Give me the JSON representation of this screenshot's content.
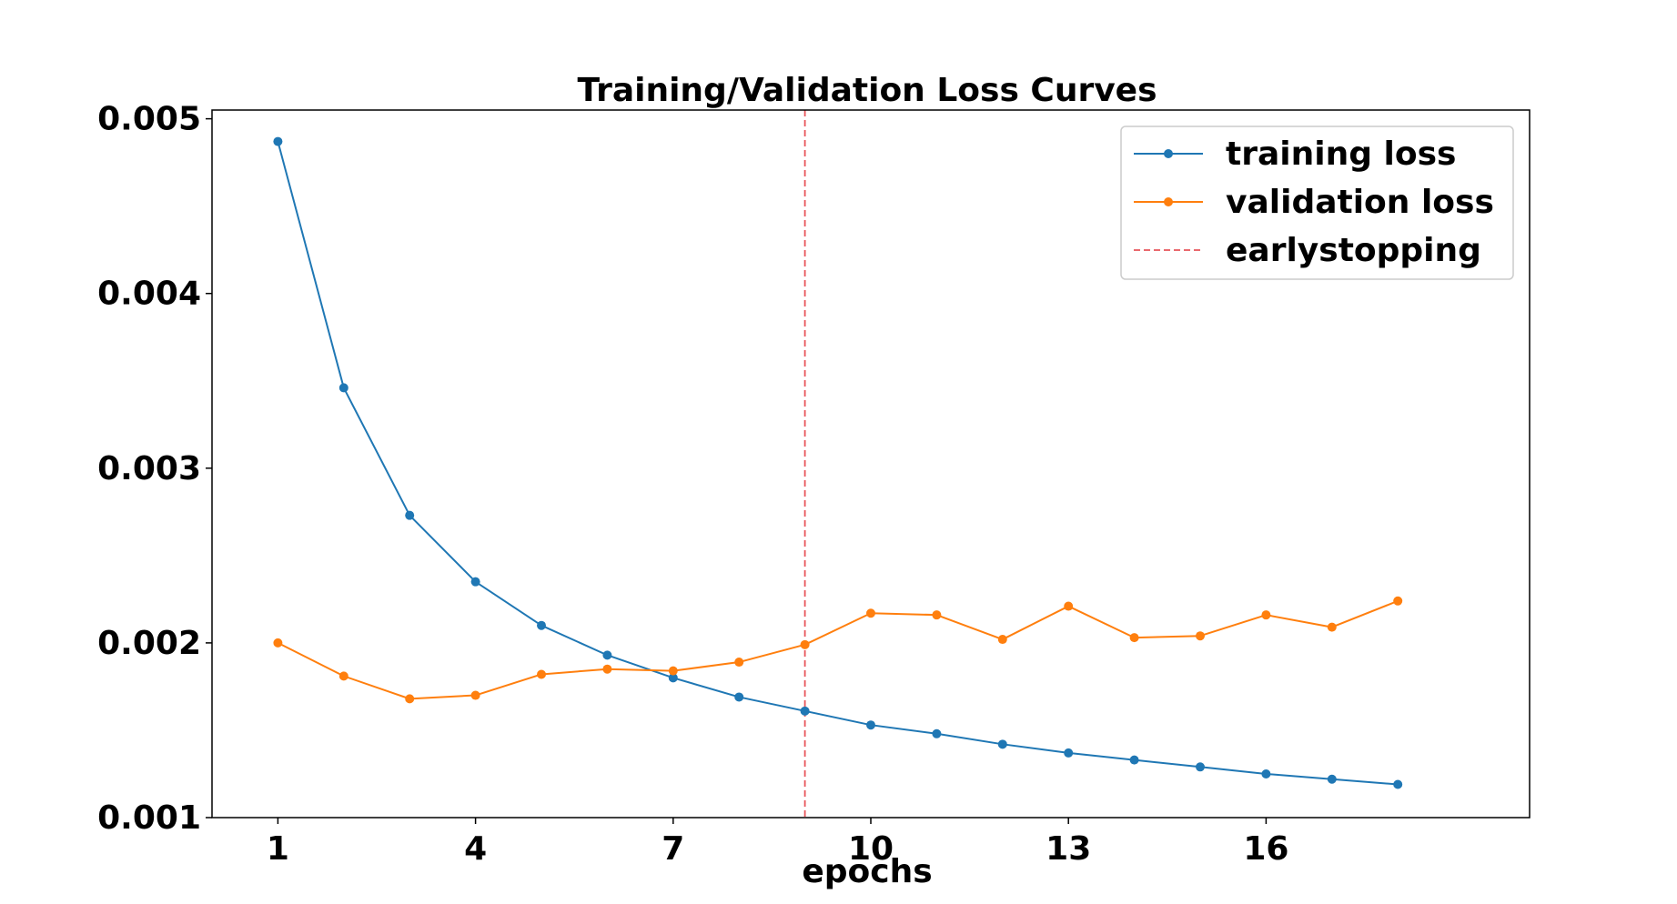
{
  "chart_data": {
    "type": "line",
    "title": "Training/Validation Loss Curves",
    "xlabel": "epochs",
    "ylabel": "",
    "x": [
      1,
      2,
      3,
      4,
      5,
      6,
      7,
      8,
      9,
      10,
      11,
      12,
      13,
      14,
      15,
      16,
      17,
      18
    ],
    "xlim": [
      0,
      20
    ],
    "ylim": [
      0.001,
      0.00505
    ],
    "xticks": [
      1,
      4,
      7,
      10,
      13,
      16
    ],
    "xtick_labels": [
      "1",
      "4",
      "7",
      "10",
      "13",
      "16"
    ],
    "yticks": [
      0.001,
      0.002,
      0.003,
      0.004,
      0.005
    ],
    "ytick_labels": [
      "0.001",
      "0.002",
      "0.003",
      "0.004",
      "0.005"
    ],
    "grid": false,
    "legend_position": "top-right",
    "series": [
      {
        "name": "training loss",
        "color": "#1f77b4",
        "marker": "circle",
        "values": [
          0.00487,
          0.00346,
          0.00273,
          0.00235,
          0.0021,
          0.00193,
          0.0018,
          0.00169,
          0.00161,
          0.00153,
          0.00148,
          0.00142,
          0.00137,
          0.00133,
          0.00129,
          0.00125,
          0.00122,
          0.00119
        ]
      },
      {
        "name": "validation loss",
        "color": "#ff7f0e",
        "marker": "circle",
        "values": [
          0.002,
          0.00181,
          0.00168,
          0.0017,
          0.00182,
          0.00185,
          0.00184,
          0.00189,
          0.00199,
          0.00217,
          0.00216,
          0.00202,
          0.00221,
          0.00203,
          0.00204,
          0.00216,
          0.00209,
          0.00224
        ]
      }
    ],
    "vlines": [
      {
        "name": "earlystopping",
        "x": 9,
        "color": "#e8545a",
        "style": "dashed"
      }
    ]
  }
}
